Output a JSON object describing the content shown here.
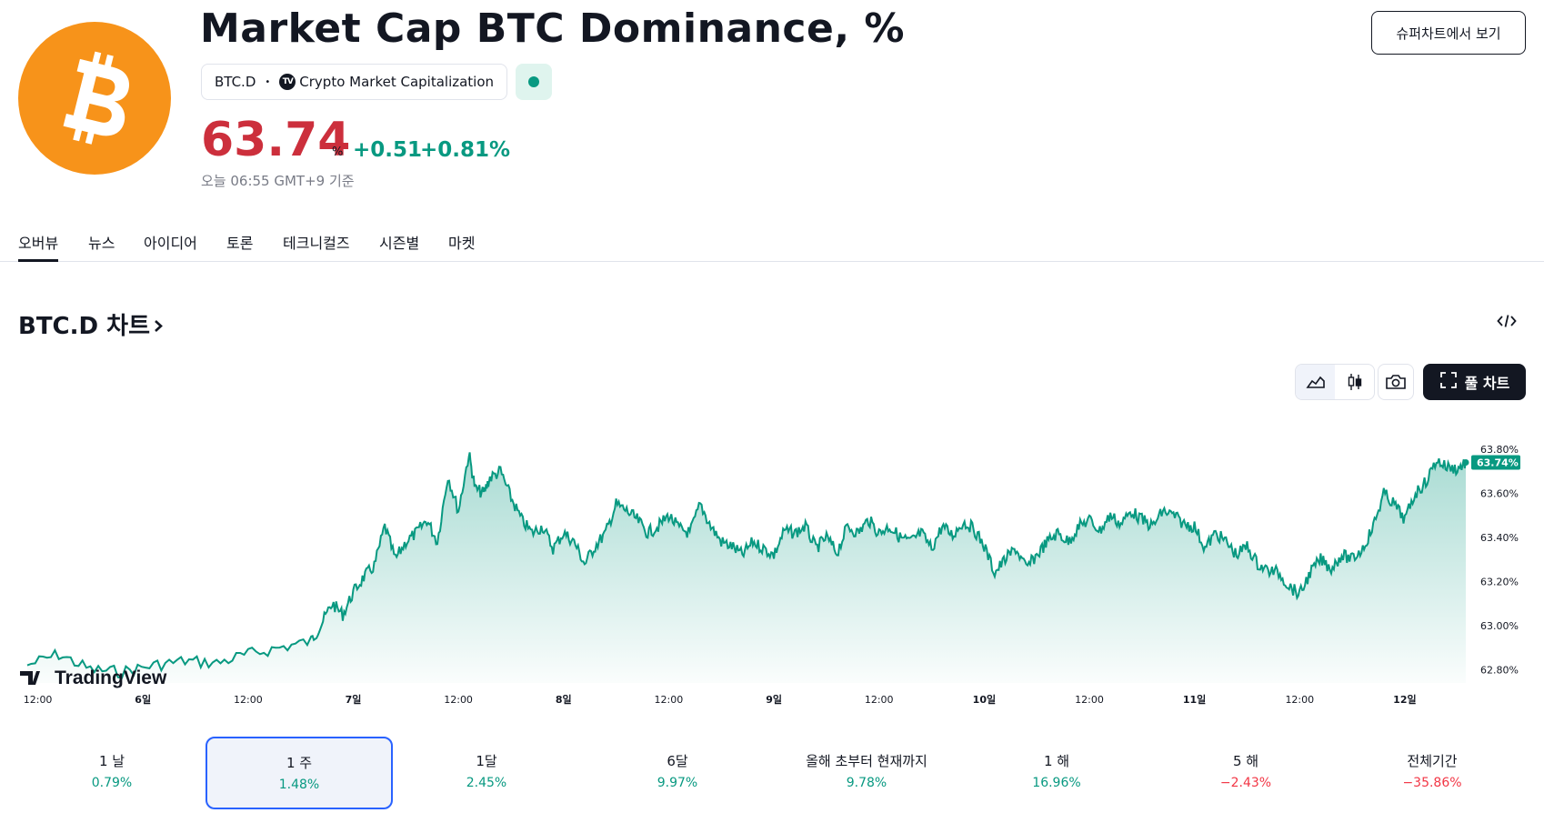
{
  "header": {
    "title": "Market Cap BTC Dominance, %",
    "symbol": "BTC.D",
    "separator": "•",
    "tv_badge": "TV",
    "source": "Crypto Market Capitalization",
    "price": "63.74",
    "price_unit": "%",
    "change_abs": "+0.51",
    "change_pct": "+0.81%",
    "as_of": "오늘 06:55 GMT+9 기준",
    "supercharts_button": "슈퍼차트에서 보기"
  },
  "tabs": [
    "오버뷰",
    "뉴스",
    "아이디어",
    "토론",
    "테크니컬즈",
    "시즌별",
    "마켓"
  ],
  "section": {
    "title": "BTC.D 차트"
  },
  "toolbar": {
    "full_chart_label": "풀 차트"
  },
  "chart_data": {
    "type": "area",
    "symbol": "BTC.D",
    "range": "1 주",
    "watermark": "TradingView",
    "last_value_label": "63.74%",
    "ylim": [
      62.74,
      63.87
    ],
    "y_ticks": [
      "63.80%",
      "63.60%",
      "63.40%",
      "63.20%",
      "63.00%",
      "62.80%"
    ],
    "x_ticks": [
      "12:00",
      "6일",
      "12:00",
      "7일",
      "12:00",
      "8일",
      "12:00",
      "9일",
      "12:00",
      "10일",
      "12:00",
      "11일",
      "12:00",
      "12일"
    ],
    "x_days": [
      5.5,
      6,
      6.5,
      7,
      7.5,
      8,
      8.5,
      9,
      9.5,
      10,
      10.5,
      11,
      11.5,
      12
    ],
    "xlim": [
      5.45,
      12.29
    ],
    "series": [
      {
        "name": "BTC.D",
        "x": [
          5.45,
          5.6,
          5.75,
          5.9,
          6.05,
          6.2,
          6.35,
          6.5,
          6.65,
          6.8,
          6.85,
          6.9,
          6.95,
          7.0,
          7.05,
          7.1,
          7.15,
          7.2,
          7.25,
          7.3,
          7.35,
          7.4,
          7.45,
          7.5,
          7.55,
          7.58,
          7.62,
          7.65,
          7.7,
          7.75,
          7.8,
          7.85,
          7.9,
          7.95,
          8.0,
          8.05,
          8.1,
          8.15,
          8.2,
          8.25,
          8.3,
          8.35,
          8.4,
          8.45,
          8.5,
          8.55,
          8.6,
          8.65,
          8.7,
          8.75,
          8.8,
          8.85,
          8.9,
          8.95,
          9.0,
          9.05,
          9.1,
          9.15,
          9.2,
          9.25,
          9.3,
          9.35,
          9.4,
          9.45,
          9.5,
          9.55,
          9.6,
          9.65,
          9.7,
          9.75,
          9.8,
          9.85,
          9.9,
          9.95,
          10.0,
          10.05,
          10.1,
          10.15,
          10.2,
          10.25,
          10.3,
          10.35,
          10.4,
          10.45,
          10.5,
          10.55,
          10.6,
          10.65,
          10.7,
          10.75,
          10.8,
          10.85,
          10.9,
          10.95,
          11.0,
          11.05,
          11.1,
          11.15,
          11.2,
          11.25,
          11.3,
          11.35,
          11.4,
          11.45,
          11.5,
          11.55,
          11.6,
          11.65,
          11.7,
          11.75,
          11.8,
          11.85,
          11.9,
          11.95,
          12.0,
          12.05,
          12.1,
          12.15,
          12.2,
          12.25,
          12.29
        ],
        "values": [
          62.82,
          62.87,
          62.8,
          62.79,
          62.82,
          62.84,
          62.83,
          62.87,
          62.9,
          62.93,
          63.01,
          63.1,
          63.05,
          63.15,
          63.22,
          63.27,
          63.45,
          63.3,
          63.38,
          63.42,
          63.48,
          63.38,
          63.68,
          63.52,
          63.78,
          63.62,
          63.6,
          63.67,
          63.7,
          63.58,
          63.48,
          63.42,
          63.45,
          63.35,
          63.42,
          63.38,
          63.28,
          63.36,
          63.42,
          63.55,
          63.52,
          63.48,
          63.42,
          63.45,
          63.5,
          63.44,
          63.42,
          63.55,
          63.45,
          63.38,
          63.36,
          63.32,
          63.38,
          63.35,
          63.32,
          63.43,
          63.42,
          63.45,
          63.35,
          63.4,
          63.33,
          63.45,
          63.42,
          63.48,
          63.42,
          63.45,
          63.4,
          63.38,
          63.42,
          63.35,
          63.45,
          63.41,
          63.47,
          63.44,
          63.36,
          63.24,
          63.3,
          63.35,
          63.26,
          63.32,
          63.38,
          63.42,
          63.38,
          63.45,
          63.48,
          63.43,
          63.5,
          63.46,
          63.52,
          63.48,
          63.45,
          63.52,
          63.5,
          63.46,
          63.45,
          63.35,
          63.42,
          63.38,
          63.32,
          63.36,
          63.28,
          63.25,
          63.24,
          63.18,
          63.14,
          63.24,
          63.3,
          63.26,
          63.32,
          63.3,
          63.35,
          63.45,
          63.6,
          63.55,
          63.48,
          63.6,
          63.65,
          63.75,
          63.72,
          63.71,
          63.74
        ]
      }
    ]
  },
  "periods": [
    {
      "label": "1 날",
      "value": "0.79%",
      "trend": "up"
    },
    {
      "label": "1 주",
      "value": "1.48%",
      "trend": "up",
      "selected": true
    },
    {
      "label": "1달",
      "value": "2.45%",
      "trend": "up"
    },
    {
      "label": "6달",
      "value": "9.97%",
      "trend": "up"
    },
    {
      "label": "올해 초부터 현재까지",
      "value": "9.78%",
      "trend": "up"
    },
    {
      "label": "1 해",
      "value": "16.96%",
      "trend": "up"
    },
    {
      "label": "5 해",
      "value": "−2.43%",
      "trend": "down"
    },
    {
      "label": "전체기간",
      "value": "−35.86%",
      "trend": "down"
    }
  ],
  "icons": [
    "bitcoin-logo-icon",
    "area-chart-icon",
    "candles-icon",
    "camera-icon",
    "fullscreen-icon",
    "embed-code-icon",
    "chevron-right-icon"
  ],
  "colors": {
    "brand_orange": "#f7931a",
    "price_red": "#cc2f3c",
    "positive": "#089981",
    "negative": "#f23645",
    "selection": "#2962ff",
    "dark": "#131722"
  }
}
